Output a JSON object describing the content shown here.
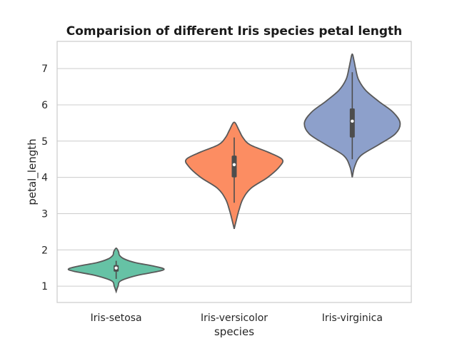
{
  "chart_data": {
    "type": "violin",
    "title": "Comparision of different Iris species petal length",
    "xlabel": "species",
    "ylabel": "petal_length",
    "categories": [
      "Iris-setosa",
      "Iris-versicolor",
      "Iris-virginica"
    ],
    "ylim": [
      0.55,
      7.75
    ],
    "yticks": [
      1,
      2,
      3,
      4,
      5,
      6,
      7
    ],
    "grid": "horizontal",
    "violins": [
      {
        "category": "Iris-setosa",
        "color": "#66c2a5",
        "q1": 1.4,
        "median": 1.5,
        "q3": 1.58,
        "whisker_low": 1.2,
        "whisker_high": 1.7,
        "density": [
          [
            0.85,
            0
          ],
          [
            1.0,
            0.04
          ],
          [
            1.15,
            0.1
          ],
          [
            1.3,
            0.45
          ],
          [
            1.4,
            0.85
          ],
          [
            1.47,
            1.0
          ],
          [
            1.55,
            0.8
          ],
          [
            1.65,
            0.4
          ],
          [
            1.75,
            0.17
          ],
          [
            1.85,
            0.07
          ],
          [
            1.95,
            0.05
          ],
          [
            2.05,
            0
          ]
        ]
      },
      {
        "category": "Iris-versicolor",
        "color": "#fc8d62",
        "q1": 4.0,
        "median": 4.35,
        "q3": 4.6,
        "whisker_low": 3.3,
        "whisker_high": 5.1,
        "density": [
          [
            2.58,
            0
          ],
          [
            2.8,
            0.04
          ],
          [
            3.1,
            0.1
          ],
          [
            3.4,
            0.18
          ],
          [
            3.7,
            0.35
          ],
          [
            4.0,
            0.7
          ],
          [
            4.3,
            0.95
          ],
          [
            4.5,
            1.0
          ],
          [
            4.7,
            0.7
          ],
          [
            4.9,
            0.33
          ],
          [
            5.1,
            0.18
          ],
          [
            5.3,
            0.1
          ],
          [
            5.52,
            0
          ]
        ]
      },
      {
        "category": "Iris-virginica",
        "color": "#8da0cb",
        "q1": 5.1,
        "median": 5.55,
        "q3": 5.9,
        "whisker_low": 4.5,
        "whisker_high": 6.9,
        "density": [
          [
            4.0,
            0
          ],
          [
            4.3,
            0.05
          ],
          [
            4.6,
            0.18
          ],
          [
            4.9,
            0.55
          ],
          [
            5.2,
            0.9
          ],
          [
            5.5,
            1.0
          ],
          [
            5.8,
            0.85
          ],
          [
            6.1,
            0.55
          ],
          [
            6.4,
            0.28
          ],
          [
            6.7,
            0.13
          ],
          [
            7.0,
            0.07
          ],
          [
            7.2,
            0.04
          ],
          [
            7.4,
            0
          ]
        ]
      }
    ]
  }
}
